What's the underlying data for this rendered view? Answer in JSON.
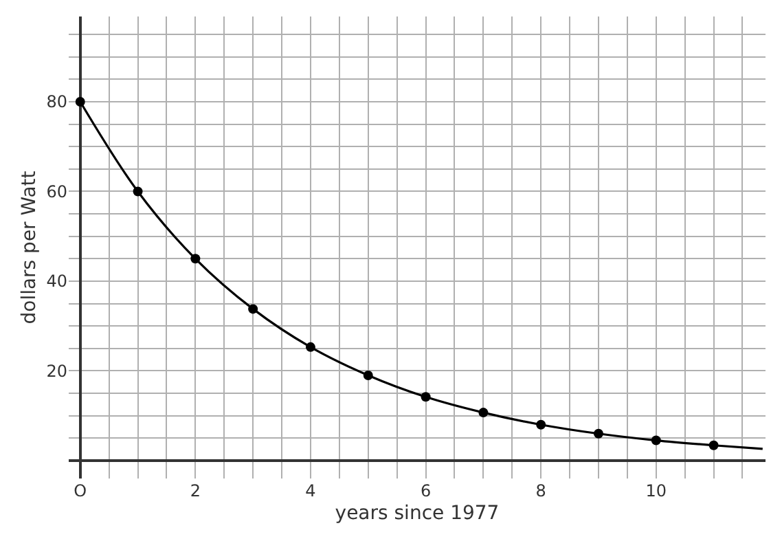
{
  "chart_data": {
    "type": "line",
    "xlabel": "years since 1977",
    "ylabel": "dollars per Watt",
    "series": [
      {
        "color": "#000000",
        "marker": "none",
        "x": [
          0,
          1,
          2,
          3,
          4,
          5,
          6,
          7,
          8,
          9,
          10,
          11,
          11.85
        ],
        "values": [
          80,
          60,
          45,
          33.8,
          25.3,
          19,
          14.2,
          10.7,
          8,
          6,
          4.5,
          3.4,
          2.6
        ]
      },
      {
        "type": "scatter",
        "color": "#000000",
        "marker": "circle",
        "x": [
          0,
          1,
          2,
          3,
          4,
          5,
          6,
          7,
          8,
          9,
          10,
          11
        ],
        "values": [
          80,
          60,
          45,
          33.8,
          25.3,
          19,
          14.2,
          10.7,
          8,
          6,
          4.5,
          3.4
        ]
      }
    ],
    "xlim": [
      -0.2,
      11.9
    ],
    "ylim": [
      -4,
      99
    ],
    "xticks": [
      {
        "value": 0,
        "label": "O"
      },
      {
        "value": 0.5,
        "label": null
      },
      {
        "value": 1,
        "label": null
      },
      {
        "value": 1.5,
        "label": null
      },
      2,
      {
        "value": 2.5,
        "label": null
      },
      {
        "value": 3,
        "label": null
      },
      {
        "value": 3.5,
        "label": null
      },
      4,
      {
        "value": 4.5,
        "label": null
      },
      {
        "value": 5,
        "label": null
      },
      {
        "value": 5.5,
        "label": null
      },
      6,
      {
        "value": 6.5,
        "label": null
      },
      {
        "value": 7,
        "label": null
      },
      {
        "value": 7.5,
        "label": null
      },
      8,
      {
        "value": 8.5,
        "label": null
      },
      {
        "value": 9,
        "label": null
      },
      {
        "value": 9.5,
        "label": null
      },
      10,
      {
        "value": 10.5,
        "label": null
      },
      {
        "value": 11,
        "label": null
      },
      {
        "value": 11.5,
        "label": null
      }
    ],
    "yticks": [
      {
        "value": 0,
        "label": null
      },
      {
        "value": 5,
        "label": null
      },
      {
        "value": 10,
        "label": null
      },
      {
        "value": 15,
        "label": null
      },
      20,
      {
        "value": 25,
        "label": null
      },
      {
        "value": 30,
        "label": null
      },
      {
        "value": 35,
        "label": null
      },
      40,
      {
        "value": 45,
        "label": null
      },
      {
        "value": 50,
        "label": null
      },
      {
        "value": 55,
        "label": null
      },
      60,
      {
        "value": 65,
        "label": null
      },
      {
        "value": 70,
        "label": null
      },
      {
        "value": 75,
        "label": null
      },
      80,
      {
        "value": 85,
        "label": null
      },
      {
        "value": 90,
        "label": null
      },
      {
        "value": 95,
        "label": null
      }
    ],
    "grid": true
  }
}
